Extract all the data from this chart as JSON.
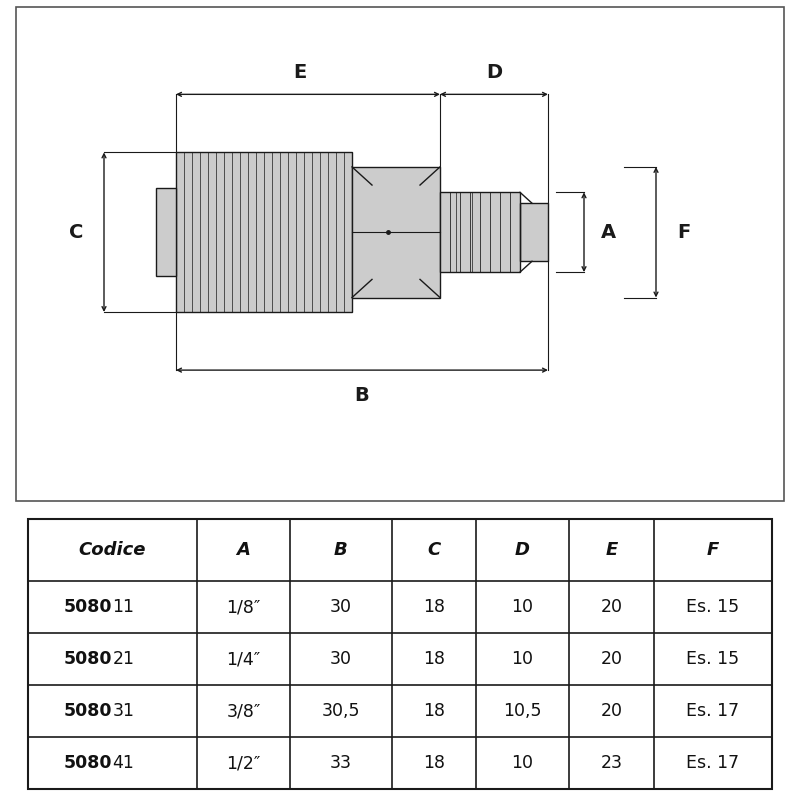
{
  "bg_color": "#ffffff",
  "line_color": "#1a1a1a",
  "gray_fill": "#cccccc",
  "table_headers": [
    "Codice",
    "A",
    "B",
    "C",
    "D",
    "E",
    "F"
  ],
  "table_rows": [
    [
      "508011",
      "1/8″",
      "30",
      "18",
      "10",
      "20",
      "Es. 15"
    ],
    [
      "508021",
      "1/4″",
      "30",
      "18",
      "10",
      "20",
      "Es. 15"
    ],
    [
      "508031",
      "3/8″",
      "30,5",
      "18",
      "10,5",
      "20",
      "Es. 17"
    ],
    [
      "508041",
      "1/2″",
      "33",
      "18",
      "10",
      "23",
      "Es. 17"
    ]
  ],
  "bold_prefix": "5080",
  "row_suffixes": [
    "11",
    "21",
    "31",
    "41"
  ]
}
